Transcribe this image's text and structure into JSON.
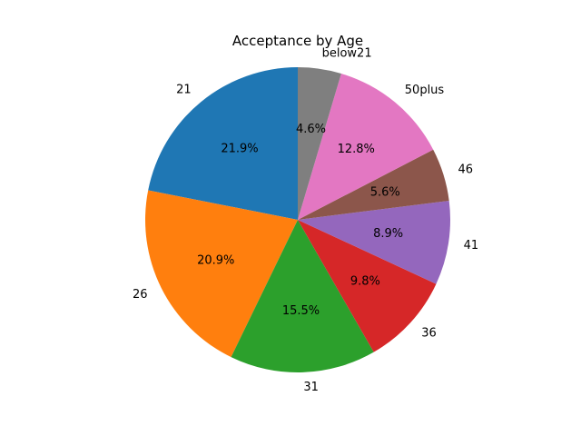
{
  "chart_data": {
    "type": "pie",
    "title": "Acceptance by Age",
    "categories": [
      "21",
      "26",
      "31",
      "36",
      "41",
      "46",
      "50plus",
      "below21"
    ],
    "values": [
      21.9,
      20.9,
      15.5,
      9.8,
      8.9,
      5.6,
      12.8,
      4.6
    ],
    "percent_labels": [
      "21.9%",
      "20.9%",
      "15.5%",
      "9.8%",
      "8.9%",
      "5.6%",
      "12.8%",
      "4.6%"
    ],
    "colors": [
      "#1f77b4",
      "#ff7f0e",
      "#2ca02c",
      "#d62728",
      "#9467bd",
      "#8c564b",
      "#e377c2",
      "#7f7f7f"
    ],
    "start_angle_deg": 90,
    "direction": "counterclockwise",
    "legend": "none"
  }
}
